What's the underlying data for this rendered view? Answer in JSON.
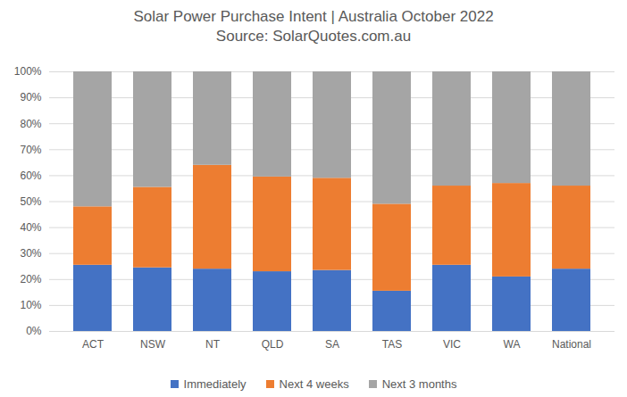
{
  "chart_data": {
    "type": "bar",
    "title": "Solar Power Purchase Intent | Australia October 2022",
    "subtitle": "Source: SolarQuotes.com.au",
    "categories": [
      "ACT",
      "NSW",
      "NT",
      "QLD",
      "SA",
      "TAS",
      "VIC",
      "WA",
      "National"
    ],
    "series": [
      {
        "name": "Immediately",
        "color": "#4472c4",
        "values": [
          25.5,
          24.5,
          24,
          23,
          23.5,
          15.5,
          25.5,
          21,
          24
        ]
      },
      {
        "name": "Next 4 weeks",
        "color": "#ed7d31",
        "values": [
          22.5,
          31,
          40,
          36.5,
          35.5,
          33.5,
          30.5,
          36,
          32
        ]
      },
      {
        "name": "Next 3 months",
        "color": "#a5a5a5",
        "values": [
          52,
          44.5,
          36,
          40.5,
          41,
          51,
          44,
          43,
          44
        ]
      }
    ],
    "stacked": true,
    "ylim": [
      0,
      100
    ],
    "yticks": [
      {
        "value": 0,
        "label": "0%"
      },
      {
        "value": 10,
        "label": "10%"
      },
      {
        "value": 20,
        "label": "20%"
      },
      {
        "value": 30,
        "label": "30%"
      },
      {
        "value": 40,
        "label": "40%"
      },
      {
        "value": 50,
        "label": "50%"
      },
      {
        "value": 60,
        "label": "60%"
      },
      {
        "value": 70,
        "label": "70%"
      },
      {
        "value": 80,
        "label": "80%"
      },
      {
        "value": 90,
        "label": "90%"
      },
      {
        "value": 100,
        "label": "100%"
      }
    ],
    "grid": true,
    "legend": "bottom"
  }
}
